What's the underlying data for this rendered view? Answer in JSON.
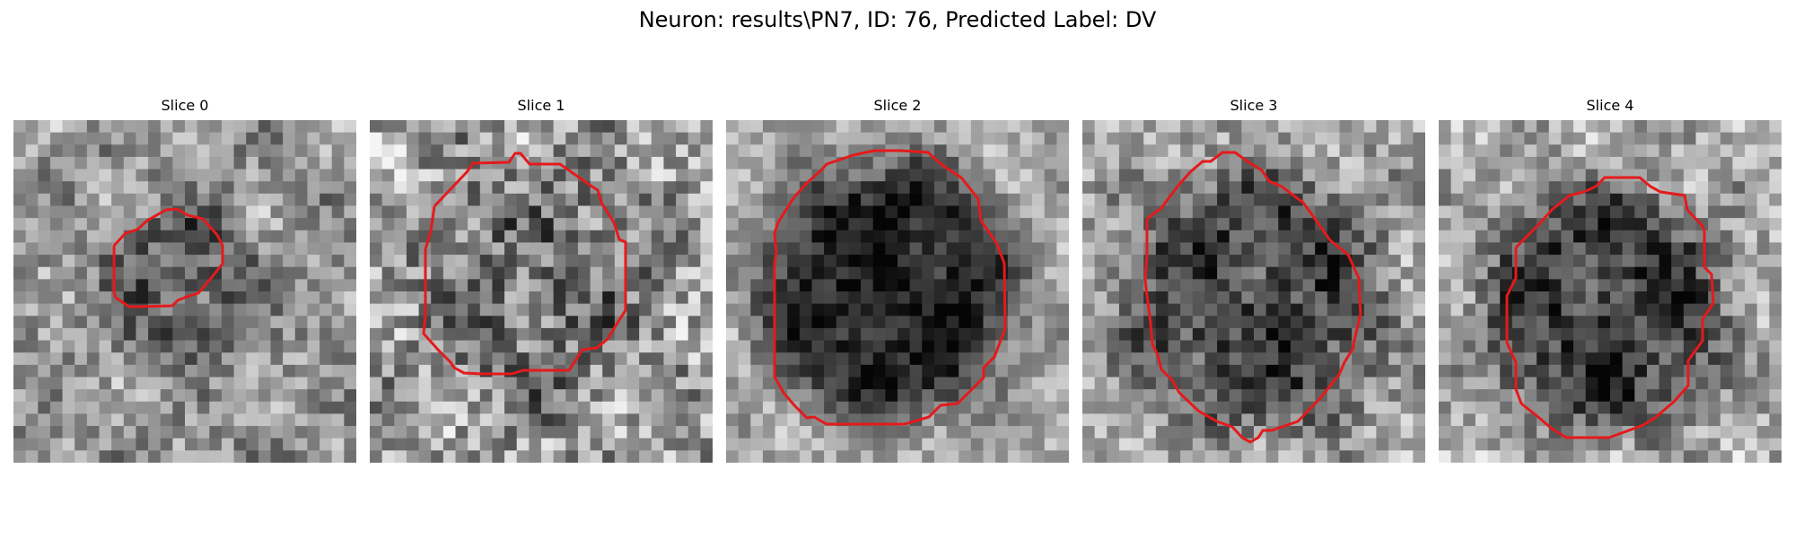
{
  "figure": {
    "title": "Neuron: results\\PN7, ID: 76, Predicted Label: DV"
  },
  "slices": [
    {
      "label": "Slice 0",
      "contour_color": "#e41a1c",
      "cell_size": "small",
      "cell_brightness": "mid-dark"
    },
    {
      "label": "Slice 1",
      "contour_color": "#e41a1c",
      "cell_size": "large",
      "cell_brightness": "mid"
    },
    {
      "label": "Slice 2",
      "contour_color": "#e41a1c",
      "cell_size": "large",
      "cell_brightness": "dark"
    },
    {
      "label": "Slice 3",
      "contour_color": "#e41a1c",
      "cell_size": "large",
      "cell_brightness": "dark"
    },
    {
      "label": "Slice 4",
      "contour_color": "#e41a1c",
      "cell_size": "large",
      "cell_brightness": "dark"
    }
  ]
}
